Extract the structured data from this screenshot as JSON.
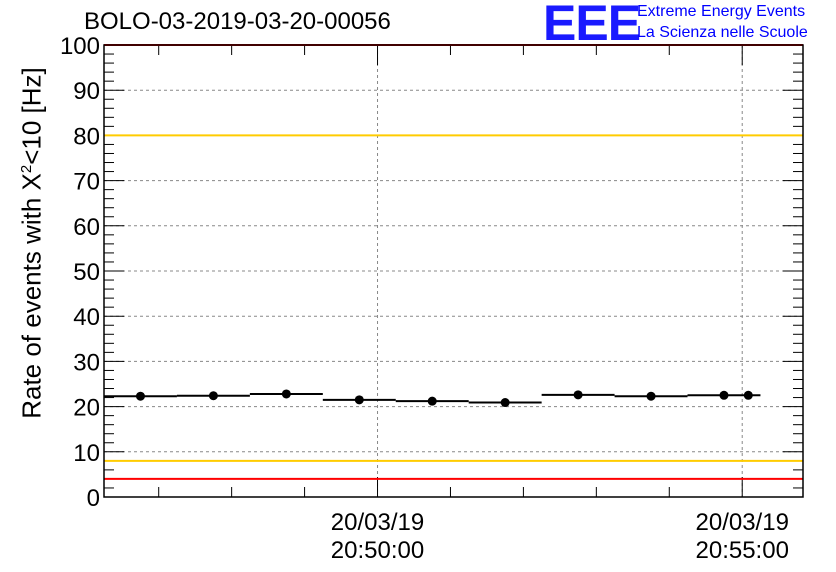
{
  "title": "BOLO-03-2019-03-20-00056",
  "logo": {
    "mark": "EEE",
    "line1": "Extreme Energy Events",
    "line2": "La Scienza nelle Scuole"
  },
  "chart_data": {
    "type": "scatter",
    "ylabel_prefix": "Rate of events with X",
    "ylabel_sup": "2",
    "ylabel_suffix": "<10 [Hz]",
    "ylim": [
      0,
      100
    ],
    "yticks": [
      0,
      10,
      20,
      30,
      40,
      50,
      60,
      70,
      80,
      90,
      100
    ],
    "xlim": [
      "20:46:15",
      "20:55:50"
    ],
    "xticks": [
      {
        "time": "20:50:00",
        "date": "20/03/19"
      },
      {
        "time": "20:55:00",
        "date": "20/03/19"
      }
    ],
    "grid": true,
    "series": [
      {
        "x": [
          "20:46:45",
          "20:47:45",
          "20:48:45",
          "20:49:45",
          "20:50:45",
          "20:51:45",
          "20:52:45",
          "20:53:45",
          "20:54:45",
          "20:55:05"
        ],
        "y": [
          22.3,
          22.4,
          22.8,
          21.5,
          21.2,
          20.9,
          22.6,
          22.3,
          22.5,
          22.5
        ],
        "x_halfwidth_seconds": [
          30,
          30,
          30,
          30,
          30,
          30,
          30,
          30,
          30,
          0
        ],
        "color": "#000000"
      }
    ],
    "reference_lines": [
      {
        "y": 100,
        "color": "#ff0000"
      },
      {
        "y": 80,
        "color": "#ffcc00"
      },
      {
        "y": 8,
        "color": "#ffcc00"
      },
      {
        "y": 4,
        "color": "#ff0000"
      }
    ]
  }
}
